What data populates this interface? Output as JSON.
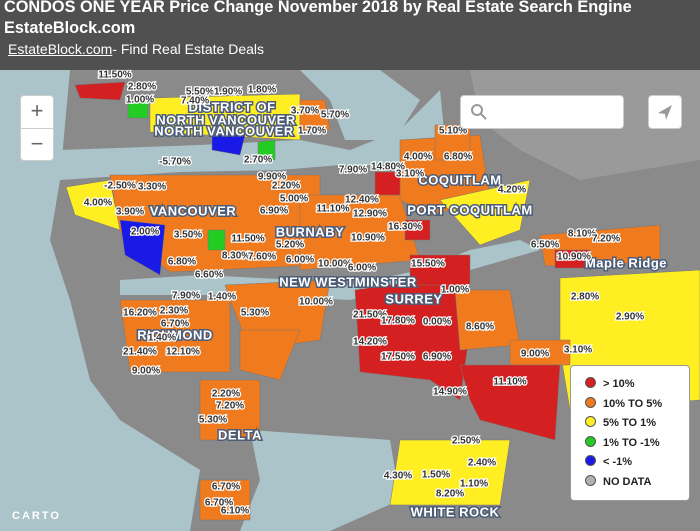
{
  "header": {
    "title": "CONDOS ONE YEAR Price Change November 2018 by Real Estate Search Engine EstateBlock.com",
    "link": "EstateBlock.com",
    "tagline": "- Find Real Estate Deals"
  },
  "controls": {
    "zoom_in": "+",
    "zoom_out": "−"
  },
  "places": [
    "DISTRICT OF",
    "NORTH VANCOUVER",
    "NORTH VANCOUVER",
    "VANCOUVER",
    "BURNABY",
    "NEW WESTMINSTER",
    "SURREY",
    "RICHMOND",
    "DELTA",
    "WHITE ROCK",
    "COQUITLAM",
    "PORT COQUITLAM",
    "Maple Ridge"
  ],
  "price_labels": [
    "11.50%",
    "2.80%",
    "1.00%",
    "5.50%",
    "1.90%",
    "1.80%",
    "7.40%",
    "3.70%",
    "5.70%",
    "1.70%",
    "5.10%",
    "-5.70%",
    "2.70%",
    "7.90%",
    "14.80%",
    "4.00%",
    "6.80%",
    "3.10%",
    "9.90%",
    "2.20%",
    "-2.50%",
    "3.30%",
    "4.00%",
    "5.00%",
    "12.40%",
    "11.10%",
    "12.90%",
    "4.20%",
    "6.90%",
    "3.90%",
    "16.30%",
    "10.90%",
    "8.10%",
    "7.20%",
    "6.50%",
    "2.00%",
    "3.50%",
    "11.50%",
    "5.20%",
    "10.90%",
    "6.80%",
    "8.30%",
    "7.60%",
    "6.00%",
    "10.00%",
    "6.00%",
    "15.50%",
    "6.60%",
    "2.80%",
    "2.90%",
    "7.90%",
    "1.40%",
    "10.00%",
    "1.00%",
    "16.20%",
    "2.30%",
    "5.30%",
    "21.50%",
    "17.80%",
    "0.00%",
    "8.60%",
    "6.70%",
    "1.40%",
    "14.20%",
    "21.40%",
    "12.10%",
    "17.50%",
    "6.90%",
    "9.00%",
    "3.10%",
    "9.00%",
    "11.10%",
    "14.90%",
    "2.20%",
    "7.20%",
    "5.30%",
    "2.50%",
    "2.40%",
    "4.30%",
    "1.50%",
    "1.10%",
    "8.20%",
    "6.70%",
    "6.70%",
    "6.10%"
  ],
  "legend": [
    {
      "label": "> 10%",
      "color": "#d42020"
    },
    {
      "label": "10% TO 5%",
      "color": "#f07a1e"
    },
    {
      "label": "5% TO 1%",
      "color": "#ffee22"
    },
    {
      "label": "1% TO -1%",
      "color": "#22cc22"
    },
    {
      "label": "< -1%",
      "color": "#1a1ae6"
    },
    {
      "label": "NO DATA",
      "color": "#b0b0b0"
    }
  ],
  "attribution": "CARTO"
}
